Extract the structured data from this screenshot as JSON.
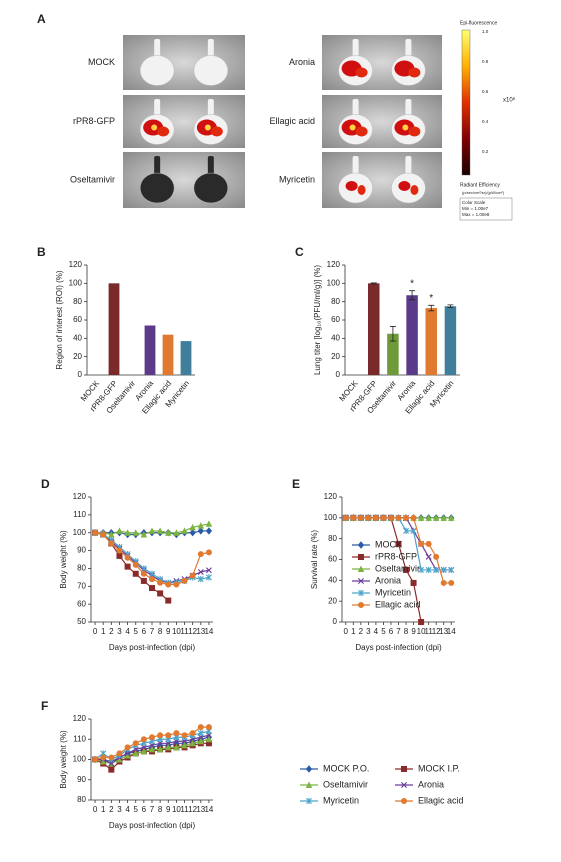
{
  "panel_a": {
    "panel": "A",
    "left_labels": [
      "MOCK",
      "rPR8-GFP",
      "Oseltamivir"
    ],
    "right_labels": [
      "Aronia",
      "Ellagic acid",
      "Myricetin"
    ],
    "colorbar": {
      "title": "Epi-fluorescence",
      "ticks": [
        "1.0",
        "0.8",
        "0.6",
        "0.4",
        "0.2"
      ],
      "multiplier": "x10⁸",
      "unit_title": "Radiant Efficiency",
      "unit": "(p/sec/cm²/sr)/(µW/cm²)",
      "scale_title": "Color Scale",
      "min": "Min = 1.00e7",
      "max": "Max = 1.00e8"
    }
  },
  "chart_data": [
    {
      "type": "bar",
      "panel": "B",
      "y_label": "Region of interest (ROI) (%)",
      "categories": [
        "MOCK",
        "rPR8-GFP",
        "Oseltamivir",
        "Aronia",
        "Ellagic acid",
        "Myricetin"
      ],
      "values": [
        0,
        100,
        0,
        54,
        44,
        37
      ],
      "colors": [
        "#7a2a2a",
        "#7a2a2a",
        "#6f9a3a",
        "#5b3a8a",
        "#e07a30",
        "#3f7f9b"
      ],
      "ylim": [
        0,
        120
      ],
      "yticks": [
        0,
        20,
        40,
        60,
        80,
        100,
        120
      ]
    },
    {
      "type": "bar",
      "panel": "C",
      "y_label": "Lung titer [log₁₀(PFU/ml/g)] (%)",
      "categories": [
        "MOCK",
        "rPR8-GFP",
        "Oseltamivir",
        "Aronia",
        "Ellagic acid",
        "Myricetin"
      ],
      "values": [
        0,
        100,
        45,
        87,
        73,
        75
      ],
      "errors": [
        0,
        0.5,
        8,
        5,
        3,
        1.5
      ],
      "colors": [
        "#7a2a2a",
        "#7a2a2a",
        "#6f9a3a",
        "#5b3a8a",
        "#e07a30",
        "#3f7f9b"
      ],
      "annotations": [
        {
          "category": "Aronia",
          "text": "*"
        },
        {
          "category": "Ellagic acid",
          "text": "*"
        }
      ],
      "ylim": [
        0,
        120
      ],
      "yticks": [
        0,
        20,
        40,
        60,
        80,
        100,
        120
      ]
    },
    {
      "type": "line",
      "panel": "D",
      "x_label": "Days post-infection (dpi)",
      "y_label": "Body weight (%)",
      "x": [
        0,
        1,
        2,
        3,
        4,
        5,
        6,
        7,
        8,
        9,
        10,
        11,
        12,
        13,
        14
      ],
      "series": [
        {
          "name": "MOCK",
          "color": "#2a5aa8",
          "marker": "diamond",
          "values": [
            100,
            100,
            100,
            100,
            99,
            99,
            100,
            100,
            100,
            100,
            99,
            100,
            100,
            101,
            101
          ]
        },
        {
          "name": "rPR8-GFP",
          "color": "#8b2a2a",
          "marker": "square",
          "values": [
            100,
            99,
            94,
            87,
            81,
            77,
            73,
            69,
            66,
            62,
            null,
            null,
            null,
            null,
            null
          ]
        },
        {
          "name": "Oseltamivir",
          "color": "#7cb342",
          "marker": "triangle",
          "values": [
            100,
            100,
            99,
            101,
            100,
            100,
            99,
            101,
            101,
            100,
            100,
            101,
            103,
            104,
            105
          ]
        },
        {
          "name": "Aronia",
          "color": "#6a3d9a",
          "marker": "x",
          "values": [
            100,
            99,
            95,
            91,
            87,
            83,
            79,
            76,
            73,
            72,
            73,
            74,
            76,
            78,
            79
          ]
        },
        {
          "name": "Myricetin",
          "color": "#4aa3c8",
          "marker": "star",
          "values": [
            100,
            99,
            96,
            92,
            88,
            84,
            80,
            77,
            74,
            72,
            72,
            73,
            75,
            74,
            75
          ]
        },
        {
          "name": "Ellagic acid",
          "color": "#e07a30",
          "marker": "circle",
          "values": [
            100,
            99,
            94,
            90,
            86,
            82,
            77,
            74,
            72,
            71,
            71,
            73,
            76,
            88,
            89
          ]
        }
      ],
      "xlim": [
        -0.5,
        14.5
      ],
      "xticks": [
        0,
        1,
        2,
        3,
        4,
        5,
        6,
        7,
        8,
        9,
        10,
        11,
        12,
        13,
        14
      ],
      "ylim": [
        50,
        120
      ],
      "yticks": [
        50,
        60,
        70,
        80,
        90,
        100,
        110,
        120
      ]
    },
    {
      "type": "line",
      "panel": "E",
      "x_label": "Days post-infection (dpi)",
      "y_label": "Survival rate (%)",
      "legend": "left",
      "x": [
        0,
        1,
        2,
        3,
        4,
        5,
        6,
        7,
        8,
        9,
        10,
        11,
        12,
        13,
        14
      ],
      "series": [
        {
          "name": "MOCK",
          "color": "#2a5aa8",
          "marker": "diamond",
          "values": [
            100,
            100,
            100,
            100,
            100,
            100,
            100,
            100,
            100,
            100,
            100,
            100,
            100,
            100,
            100
          ]
        },
        {
          "name": "rPR8-GFP",
          "color": "#8b2a2a",
          "marker": "square",
          "values": [
            100,
            100,
            100,
            100,
            100,
            100,
            100,
            75,
            50,
            37.5,
            0,
            null,
            null,
            null,
            null
          ]
        },
        {
          "name": "Oseltamivir",
          "color": "#7cb342",
          "marker": "triangle",
          "values": [
            100,
            100,
            100,
            100,
            100,
            100,
            100,
            100,
            100,
            100,
            100,
            100,
            100,
            100,
            100
          ]
        },
        {
          "name": "Aronia",
          "color": "#6a3d9a",
          "marker": "x",
          "values": [
            100,
            100,
            100,
            100,
            100,
            100,
            100,
            100,
            100,
            87.5,
            75,
            62.5,
            50,
            50,
            50
          ]
        },
        {
          "name": "Myricetin",
          "color": "#4aa3c8",
          "marker": "star",
          "values": [
            100,
            100,
            100,
            100,
            100,
            100,
            100,
            100,
            87.5,
            87.5,
            50,
            50,
            50,
            50,
            50
          ]
        },
        {
          "name": "Ellagic acid",
          "color": "#e07a30",
          "marker": "circle",
          "values": [
            100,
            100,
            100,
            100,
            100,
            100,
            100,
            100,
            100,
            100,
            75,
            75,
            62.5,
            37.5,
            37.5
          ]
        }
      ],
      "xlim": [
        -0.5,
        14.5
      ],
      "xticks": [
        0,
        1,
        2,
        3,
        4,
        5,
        6,
        7,
        8,
        9,
        10,
        11,
        12,
        13,
        14
      ],
      "ylim": [
        0,
        120
      ],
      "yticks": [
        0,
        20,
        40,
        60,
        80,
        100,
        120
      ]
    },
    {
      "type": "line",
      "panel": "F",
      "x_label": "Days post-infection (dpi)",
      "y_label": "Body weight (%)",
      "legend": "outside-right",
      "x": [
        0,
        1,
        2,
        3,
        4,
        5,
        6,
        7,
        8,
        9,
        10,
        11,
        12,
        13,
        14
      ],
      "series": [
        {
          "name": "MOCK P.O.",
          "color": "#2a5aa8",
          "marker": "diamond",
          "values": [
            100,
            100,
            99,
            101,
            103,
            104,
            105,
            106,
            107,
            107,
            108,
            108,
            109,
            110,
            111
          ]
        },
        {
          "name": "MOCK I.P.",
          "color": "#8b2a2a",
          "marker": "square",
          "values": [
            100,
            98,
            95,
            99,
            101,
            103,
            104,
            104,
            105,
            105,
            106,
            106,
            107,
            108,
            108
          ]
        },
        {
          "name": "Oseltamivir",
          "color": "#7cb342",
          "marker": "triangle",
          "values": [
            100,
            99,
            98,
            100,
            102,
            103,
            104,
            105,
            105,
            106,
            106,
            107,
            108,
            109,
            110
          ]
        },
        {
          "name": "Aronia",
          "color": "#6a3d9a",
          "marker": "x",
          "values": [
            100,
            100,
            98,
            101,
            103,
            105,
            106,
            107,
            108,
            108,
            109,
            109,
            110,
            111,
            112
          ]
        },
        {
          "name": "Myricetin",
          "color": "#4aa3c8",
          "marker": "star",
          "values": [
            100,
            103,
            100,
            102,
            105,
            107,
            108,
            109,
            110,
            110,
            111,
            111,
            112,
            113,
            114
          ]
        },
        {
          "name": "Ellagic acid",
          "color": "#e07a30",
          "marker": "circle",
          "values": [
            100,
            101,
            101,
            103,
            106,
            108,
            110,
            111,
            112,
            112,
            113,
            112,
            113,
            116,
            116
          ]
        }
      ],
      "xlim": [
        -0.5,
        14.5
      ],
      "xticks": [
        0,
        1,
        2,
        3,
        4,
        5,
        6,
        7,
        8,
        9,
        10,
        11,
        12,
        13,
        14
      ],
      "ylim": [
        80,
        120
      ],
      "yticks": [
        80,
        90,
        100,
        110,
        120
      ]
    }
  ]
}
